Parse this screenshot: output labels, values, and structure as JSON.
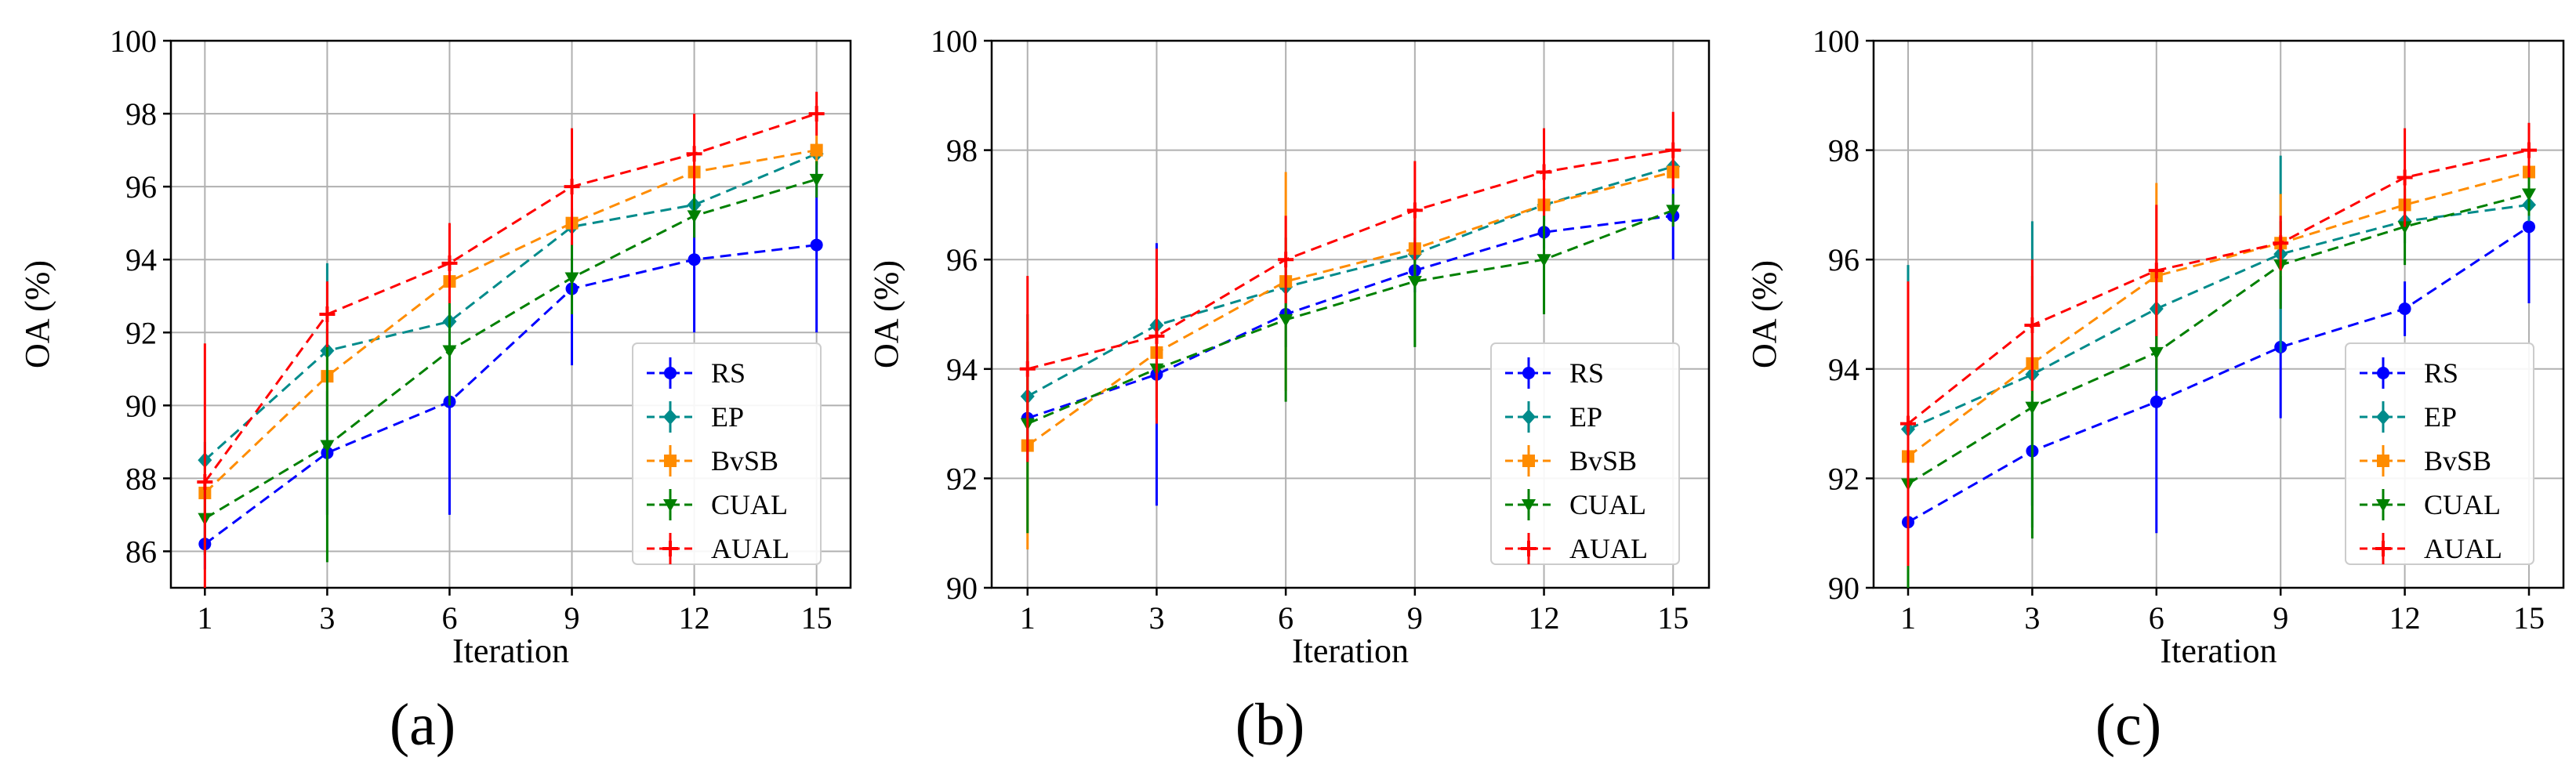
{
  "figure": {
    "panels": [
      "(a)",
      "(b)",
      "(c)"
    ]
  },
  "chart_data": [
    {
      "id": "a",
      "type": "line",
      "panel_label": "(a)",
      "title": "",
      "xlabel": "Iteration",
      "ylabel": "OA (%)",
      "categories": [
        "1",
        "3",
        "6",
        "9",
        "12",
        "15"
      ],
      "ylim": [
        85,
        100
      ],
      "yticks": [
        "86",
        "88",
        "90",
        "92",
        "94",
        "96",
        "98",
        "100"
      ],
      "grid": true,
      "legend_position": "lower-right",
      "series": [
        {
          "name": "RS",
          "color": "#0000ff",
          "marker": "circle",
          "values": [
            86.2,
            88.7,
            90.1,
            93.2,
            94.0,
            94.4
          ],
          "errors": [
            0.7,
            1.7,
            3.1,
            2.1,
            2.0,
            2.4
          ]
        },
        {
          "name": "EP",
          "color": "#008b8b",
          "marker": "diamond",
          "values": [
            88.5,
            91.5,
            92.3,
            94.9,
            95.5,
            96.9
          ],
          "errors": [
            0.5,
            2.4,
            1.1,
            0.5,
            0.4,
            0.3
          ]
        },
        {
          "name": "BvSB",
          "color": "#ff8c00",
          "marker": "square",
          "values": [
            87.6,
            90.8,
            93.4,
            95.0,
            96.4,
            97.0
          ],
          "errors": [
            0.8,
            1.5,
            1.0,
            0.4,
            0.5,
            0.4
          ]
        },
        {
          "name": "CUAL",
          "color": "#008000",
          "marker": "triangle-down",
          "values": [
            86.9,
            88.9,
            91.5,
            93.5,
            95.2,
            96.2
          ],
          "errors": [
            1.0,
            3.2,
            1.5,
            1.0,
            0.6,
            0.5
          ]
        },
        {
          "name": "AUAL",
          "color": "#ff0000",
          "marker": "plus",
          "values": [
            87.9,
            92.5,
            93.9,
            96.0,
            96.9,
            98.0
          ],
          "errors": [
            3.8,
            0.9,
            1.1,
            1.6,
            1.1,
            0.6
          ]
        }
      ]
    },
    {
      "id": "b",
      "type": "line",
      "panel_label": "(b)",
      "title": "",
      "xlabel": "Iteration",
      "ylabel": "OA (%)",
      "categories": [
        "1",
        "3",
        "6",
        "9",
        "12",
        "15"
      ],
      "ylim": [
        90,
        100
      ],
      "yticks": [
        "90",
        "92",
        "94",
        "96",
        "98",
        "100"
      ],
      "grid": true,
      "legend_position": "lower-right",
      "series": [
        {
          "name": "RS",
          "color": "#0000ff",
          "marker": "circle",
          "values": [
            93.1,
            93.9,
            95.0,
            95.8,
            96.5,
            96.8
          ],
          "errors": [
            0.5,
            2.4,
            0.6,
            0.4,
            0.3,
            0.8
          ]
        },
        {
          "name": "EP",
          "color": "#008b8b",
          "marker": "diamond",
          "values": [
            93.5,
            94.8,
            95.5,
            96.1,
            97.0,
            97.7
          ],
          "errors": [
            0.4,
            0.5,
            0.3,
            0.3,
            0.3,
            0.3
          ]
        },
        {
          "name": "BvSB",
          "color": "#ff8c00",
          "marker": "square",
          "values": [
            92.6,
            94.3,
            95.6,
            96.2,
            97.0,
            97.6
          ],
          "errors": [
            1.9,
            0.9,
            2.0,
            0.5,
            0.3,
            0.3
          ]
        },
        {
          "name": "CUAL",
          "color": "#008000",
          "marker": "triangle-down",
          "values": [
            93.0,
            94.0,
            94.9,
            95.6,
            96.0,
            96.9
          ],
          "errors": [
            2.0,
            0.9,
            1.5,
            1.2,
            1.0,
            0.3
          ]
        },
        {
          "name": "AUAL",
          "color": "#ff0000",
          "marker": "plus",
          "values": [
            94.0,
            94.6,
            96.0,
            96.9,
            97.6,
            98.0
          ],
          "errors": [
            1.7,
            1.6,
            0.8,
            0.9,
            0.8,
            0.7
          ]
        }
      ]
    },
    {
      "id": "c",
      "type": "line",
      "panel_label": "(c)",
      "title": "",
      "xlabel": "Iteration",
      "ylabel": "OA (%)",
      "categories": [
        "1",
        "3",
        "6",
        "9",
        "12",
        "15"
      ],
      "ylim": [
        90,
        100
      ],
      "yticks": [
        "90",
        "92",
        "94",
        "96",
        "98",
        "100"
      ],
      "grid": true,
      "legend_position": "lower-right",
      "series": [
        {
          "name": "RS",
          "color": "#0000ff",
          "marker": "circle",
          "values": [
            91.2,
            92.5,
            93.4,
            94.4,
            95.1,
            96.6
          ],
          "errors": [
            0.6,
            1.0,
            2.4,
            1.3,
            0.5,
            1.4
          ]
        },
        {
          "name": "EP",
          "color": "#008b8b",
          "marker": "diamond",
          "values": [
            92.9,
            93.9,
            95.1,
            96.1,
            96.7,
            97.0
          ],
          "errors": [
            3.0,
            2.8,
            0.9,
            1.8,
            0.4,
            0.3
          ]
        },
        {
          "name": "BvSB",
          "color": "#ff8c00",
          "marker": "square",
          "values": [
            92.4,
            94.1,
            95.7,
            96.3,
            97.0,
            97.6
          ],
          "errors": [
            1.6,
            0.8,
            1.7,
            0.9,
            0.5,
            0.3
          ]
        },
        {
          "name": "CUAL",
          "color": "#008000",
          "marker": "triangle-down",
          "values": [
            91.9,
            93.3,
            94.3,
            95.9,
            96.6,
            97.2
          ],
          "errors": [
            1.9,
            2.4,
            0.7,
            0.8,
            0.7,
            0.4
          ]
        },
        {
          "name": "AUAL",
          "color": "#ff0000",
          "marker": "plus",
          "values": [
            93.0,
            94.8,
            95.8,
            96.3,
            97.5,
            98.0
          ],
          "errors": [
            2.6,
            1.2,
            1.2,
            0.5,
            0.9,
            0.5
          ]
        }
      ]
    }
  ]
}
